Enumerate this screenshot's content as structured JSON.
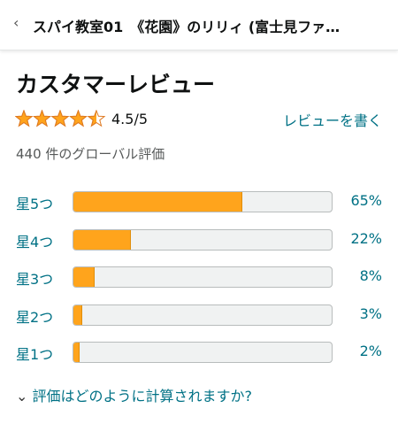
{
  "header": {
    "title": "スパイ教室01　《花園》のリリィ (富士見ファ…"
  },
  "reviews": {
    "title": "カスタマーレビュー",
    "stars": 4.5,
    "rating_label": "4.5/5",
    "write_review": "レビューを書く",
    "count_text": "440 件のグローバル評価",
    "histogram": {
      "xlim": [
        0,
        100
      ],
      "color": "#ffa41c",
      "categories": [
        "星5つ",
        "星4つ",
        "星3つ",
        "星2つ",
        "星1つ"
      ],
      "values": [
        65,
        22,
        8,
        3,
        2
      ],
      "value_labels": [
        "65%",
        "22%",
        "8%",
        "3%",
        "2%"
      ]
    }
  },
  "footer": {
    "link": "評価はどのように計算されますか?"
  }
}
